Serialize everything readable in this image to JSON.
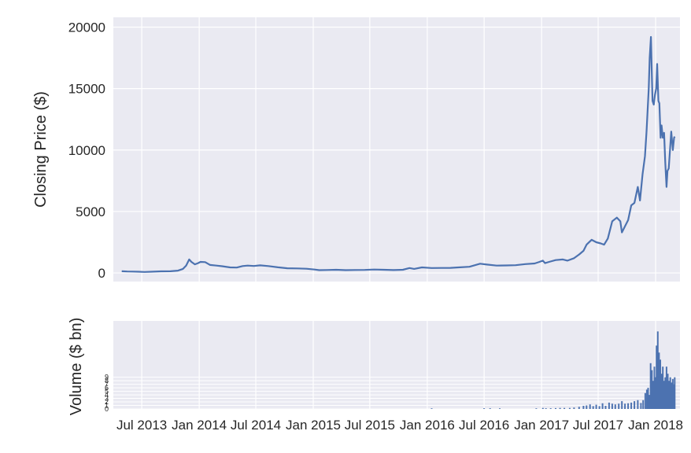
{
  "chart_data": [
    {
      "type": "line",
      "ylabel": "Closing Price ($)",
      "xlabel": "",
      "title": "",
      "ylim": [
        -700,
        20800
      ],
      "xlim": [
        "2013-04-01",
        "2018-03-20"
      ],
      "grid": true,
      "y_ticks": [
        "0",
        "5000",
        "10000",
        "15000",
        "20000"
      ],
      "y_tick_values": [
        0,
        5000,
        10000,
        15000,
        20000
      ],
      "x_tick_values": [
        "2013-07-01",
        "2014-01-01",
        "2014-07-01",
        "2015-01-01",
        "2015-07-01",
        "2016-01-01",
        "2016-07-01",
        "2017-01-01",
        "2017-07-01",
        "2018-01-01"
      ],
      "line_color": "#4c72b0",
      "series": [
        {
          "x": [
            "2013-04-28",
            "2013-05-15",
            "2013-06-01",
            "2013-06-20",
            "2013-07-10",
            "2013-08-01",
            "2013-09-01",
            "2013-10-01",
            "2013-10-25",
            "2013-11-10",
            "2013-11-20",
            "2013-11-30",
            "2013-12-07",
            "2013-12-18",
            "2013-12-28",
            "2014-01-05",
            "2014-01-20",
            "2014-02-05",
            "2014-02-25",
            "2014-03-15",
            "2014-04-10",
            "2014-05-01",
            "2014-05-20",
            "2014-06-05",
            "2014-06-25",
            "2014-07-15",
            "2014-08-10",
            "2014-09-10",
            "2014-10-10",
            "2014-11-10",
            "2014-12-10",
            "2015-01-05",
            "2015-01-20",
            "2015-02-15",
            "2015-03-15",
            "2015-04-15",
            "2015-05-15",
            "2015-06-15",
            "2015-07-15",
            "2015-08-15",
            "2015-09-15",
            "2015-10-15",
            "2015-11-05",
            "2015-11-20",
            "2015-12-15",
            "2016-01-15",
            "2016-02-15",
            "2016-03-15",
            "2016-04-15",
            "2016-05-15",
            "2016-06-18",
            "2016-07-10",
            "2016-08-10",
            "2016-09-10",
            "2016-10-10",
            "2016-11-10",
            "2016-12-10",
            "2016-12-25",
            "2017-01-05",
            "2017-01-12",
            "2017-01-25",
            "2017-02-15",
            "2017-03-10",
            "2017-03-25",
            "2017-04-15",
            "2017-05-01",
            "2017-05-15",
            "2017-05-25",
            "2017-06-10",
            "2017-06-25",
            "2017-07-10",
            "2017-07-20",
            "2017-08-01",
            "2017-08-15",
            "2017-08-30",
            "2017-09-10",
            "2017-09-15",
            "2017-09-25",
            "2017-10-05",
            "2017-10-15",
            "2017-10-25",
            "2017-11-05",
            "2017-11-12",
            "2017-11-20",
            "2017-11-28",
            "2017-12-03",
            "2017-12-07",
            "2017-12-10",
            "2017-12-13",
            "2017-12-17",
            "2017-12-20",
            "2017-12-22",
            "2017-12-26",
            "2017-12-30",
            "2018-01-03",
            "2018-01-06",
            "2018-01-10",
            "2018-01-13",
            "2018-01-17",
            "2018-01-20",
            "2018-01-24",
            "2018-01-28",
            "2018-02-01",
            "2018-02-05",
            "2018-02-08",
            "2018-02-12",
            "2018-02-16",
            "2018-02-20",
            "2018-02-25",
            "2018-03-01",
            "2018-03-03"
          ],
          "y": [
            140,
            120,
            110,
            100,
            80,
            100,
            130,
            140,
            190,
            330,
            600,
            1100,
            900,
            700,
            800,
            900,
            880,
            650,
            600,
            550,
            450,
            440,
            560,
            600,
            570,
            620,
            560,
            460,
            380,
            370,
            340,
            280,
            230,
            240,
            260,
            230,
            240,
            250,
            280,
            260,
            235,
            260,
            400,
            330,
            450,
            400,
            410,
            415,
            460,
            500,
            750,
            680,
            600,
            610,
            630,
            720,
            770,
            900,
            1000,
            800,
            900,
            1050,
            1100,
            1000,
            1200,
            1500,
            1800,
            2300,
            2700,
            2500,
            2400,
            2300,
            2800,
            4200,
            4500,
            4200,
            3300,
            3800,
            4300,
            5500,
            5700,
            7000,
            5900,
            8000,
            9500,
            11500,
            13500,
            15000,
            17500,
            19200,
            16000,
            14000,
            13700,
            14500,
            15000,
            17000,
            14000,
            13800,
            11000,
            12000,
            11000,
            11400,
            9000,
            7000,
            8300,
            8500,
            10000,
            11500,
            10000,
            11000,
            11100
          ]
        }
      ]
    },
    {
      "type": "bar",
      "ylabel": "Volume ($ bn)",
      "xlabel": "",
      "title": "",
      "ylim": [
        0,
        25
      ],
      "grid": true,
      "y_ticks": [
        "0",
        "1",
        "2",
        "3",
        "4",
        "5",
        "6",
        "7",
        "8",
        "9"
      ],
      "y_tick_values": [
        0,
        1,
        2,
        3,
        4,
        5,
        6,
        7,
        8,
        9
      ],
      "x_ticks": [
        "Jul 2013",
        "Jan 2014",
        "Jul 2014",
        "Jan 2015",
        "Jul 2015",
        "Jan 2016",
        "Jul 2016",
        "Jan 2017",
        "Jul 2017",
        "Jan 2018"
      ],
      "x_tick_values": [
        "2013-07-01",
        "2014-01-01",
        "2014-07-01",
        "2015-01-01",
        "2015-07-01",
        "2016-01-01",
        "2016-07-01",
        "2017-01-01",
        "2017-07-01",
        "2018-01-01"
      ],
      "xlim": [
        "2013-04-01",
        "2018-03-20"
      ],
      "bar_color": "#4c72b0",
      "series": [
        {
          "x": [
            "2016-01-15",
            "2016-07-01",
            "2016-07-20",
            "2016-08-20",
            "2016-12-15",
            "2017-01-05",
            "2017-01-15",
            "2017-01-30",
            "2017-02-15",
            "2017-03-01",
            "2017-03-15",
            "2017-04-01",
            "2017-04-15",
            "2017-05-01",
            "2017-05-15",
            "2017-05-25",
            "2017-06-05",
            "2017-06-15",
            "2017-06-25",
            "2017-07-05",
            "2017-07-15",
            "2017-07-25",
            "2017-08-05",
            "2017-08-15",
            "2017-08-25",
            "2017-09-05",
            "2017-09-15",
            "2017-09-25",
            "2017-10-05",
            "2017-10-15",
            "2017-10-25",
            "2017-11-05",
            "2017-11-15",
            "2017-11-22",
            "2017-11-29",
            "2017-12-04",
            "2017-12-08",
            "2017-12-12",
            "2017-12-16",
            "2017-12-20",
            "2017-12-24",
            "2017-12-28",
            "2018-01-01",
            "2018-01-04",
            "2018-01-08",
            "2018-01-12",
            "2018-01-16",
            "2018-01-20",
            "2018-01-24",
            "2018-01-28",
            "2018-02-01",
            "2018-02-05",
            "2018-02-09",
            "2018-02-13",
            "2018-02-17",
            "2018-02-21",
            "2018-02-25",
            "2018-03-01",
            "2018-03-03"
          ],
          "values": [
            0.1,
            0.2,
            0.2,
            0.15,
            0.1,
            0.3,
            0.2,
            0.2,
            0.25,
            0.3,
            0.3,
            0.3,
            0.4,
            0.6,
            0.9,
            1.0,
            1.3,
            0.8,
            1.2,
            0.8,
            1.6,
            0.9,
            1.8,
            1.5,
            1.3,
            1.5,
            2.2,
            1.5,
            1.6,
            1.8,
            2.2,
            2.5,
            1.7,
            2.5,
            4.5,
            5.5,
            6.0,
            4.0,
            13.0,
            11.0,
            8.0,
            12.0,
            9.0,
            18.0,
            22.0,
            16.0,
            14.0,
            10.0,
            12.0,
            8.0,
            9.0,
            12.0,
            10.0,
            8.0,
            9.0,
            7.5,
            8.5,
            7.0,
            9.0
          ]
        }
      ]
    }
  ]
}
